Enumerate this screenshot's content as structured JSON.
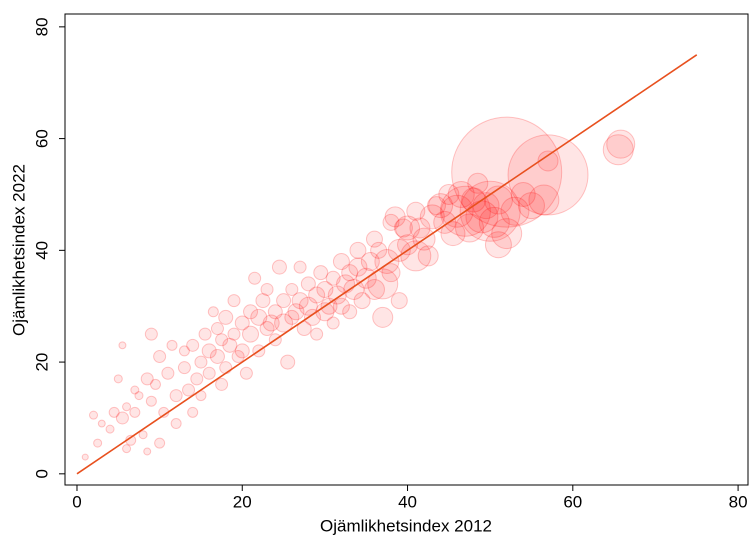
{
  "chart_data": {
    "type": "scatter",
    "xlabel": "Ojämlikhetsindex 2012",
    "ylabel": "Ojämlikhetsindex 2022",
    "xlim": [
      -1.45,
      81.2
    ],
    "ylim": [
      -2,
      82.3
    ],
    "xticks": [
      0,
      20,
      40,
      60,
      80
    ],
    "yticks": [
      0,
      20,
      40,
      60,
      80
    ],
    "series": [
      {
        "color": "#ff0000",
        "x": [
          1,
          2,
          2.5,
          3,
          4,
          4.5,
          5,
          5.5,
          5.5,
          6,
          6,
          6.5,
          7,
          7,
          7.5,
          8,
          8.5,
          8.5,
          9,
          9,
          9.5,
          10,
          10,
          10.5,
          11,
          11.5,
          12,
          12,
          13,
          13,
          13.5,
          14,
          14,
          14.5,
          15,
          15,
          15.5,
          16,
          16,
          16.5,
          17,
          17,
          17.5,
          17.5,
          18,
          18,
          18.5,
          19,
          19,
          19.5,
          20,
          20,
          20.5,
          21,
          21,
          21.5,
          22,
          22,
          22.5,
          23,
          23,
          23.5,
          24,
          24,
          24.5,
          25,
          25,
          25.5,
          26,
          26,
          26.5,
          27,
          27,
          27.5,
          28,
          28,
          28.5,
          29,
          29,
          29.5,
          30,
          30,
          30.5,
          31,
          31,
          31.5,
          32,
          32,
          32.5,
          33,
          33,
          33.5,
          34,
          34,
          34.5,
          35,
          35.5,
          36,
          36,
          36.5,
          37,
          37,
          37.5,
          38,
          38,
          38.5,
          39,
          39,
          39.5,
          40,
          40,
          41,
          41,
          41.5,
          42,
          42.5,
          43,
          43.5,
          44,
          44.5,
          45,
          45.5,
          46,
          46.5,
          47,
          47.5,
          48,
          48.5,
          49,
          49.5,
          50,
          50.5,
          51,
          51,
          52,
          52,
          53,
          54,
          55,
          56.5,
          57,
          57,
          65.5,
          65.8
        ],
        "values": [
          3,
          10.5,
          5.5,
          9,
          8,
          11,
          17,
          23,
          10,
          4.5,
          12,
          6,
          11,
          15,
          14,
          7,
          17,
          4,
          25,
          13,
          16,
          21,
          5.5,
          11,
          18,
          23,
          14,
          9,
          19,
          22,
          15,
          11,
          23,
          17,
          20,
          14,
          25,
          22,
          18,
          29,
          21,
          26,
          24,
          16,
          28,
          19,
          23,
          25,
          31,
          21,
          27,
          22,
          18,
          25,
          29,
          35,
          28,
          22,
          31,
          26,
          33,
          27,
          29,
          24,
          37,
          31,
          27,
          20,
          28,
          33,
          29,
          31,
          37,
          26,
          30,
          34,
          28,
          32,
          25,
          36,
          29,
          33,
          30,
          35,
          27,
          32,
          38,
          30,
          34,
          36,
          29,
          33,
          40,
          37,
          31,
          35,
          38,
          33,
          42,
          40,
          34,
          28,
          38,
          45,
          36,
          46,
          40,
          31,
          44,
          44,
          41,
          39,
          47,
          44,
          42,
          39,
          46,
          48,
          48,
          45,
          50,
          43,
          47,
          50,
          47,
          44,
          49,
          52,
          46,
          48,
          47,
          45,
          41,
          49,
          54,
          43,
          47,
          50,
          48,
          49,
          53.5,
          56,
          58,
          59
        ],
        "sizes": [
          9,
          16,
          16,
          12,
          16,
          25,
          16,
          12,
          36,
          16,
          16,
          25,
          25,
          16,
          16,
          16,
          36,
          12,
          36,
          25,
          25,
          36,
          25,
          25,
          36,
          25,
          36,
          25,
          36,
          25,
          36,
          25,
          36,
          36,
          36,
          25,
          36,
          49,
          36,
          25,
          49,
          36,
          36,
          36,
          49,
          36,
          49,
          36,
          36,
          36,
          49,
          49,
          36,
          64,
          49,
          36,
          64,
          36,
          49,
          49,
          36,
          64,
          49,
          36,
          49,
          49,
          81,
          49,
          49,
          36,
          64,
          64,
          36,
          49,
          81,
          49,
          64,
          64,
          36,
          49,
          81,
          64,
          64,
          49,
          36,
          81,
          64,
          64,
          81,
          64,
          49,
          100,
          64,
          81,
          64,
          100,
          81,
          100,
          64,
          64,
          225,
          100,
          144,
          64,
          81,
          100,
          121,
          64,
          81,
          144,
          100,
          225,
          81,
          100,
          121,
          100,
          144,
          81,
          144,
          121,
          100,
          144,
          256,
          169,
          625,
          196,
          144,
          100,
          256,
          169,
          900,
          225,
          169,
          196,
          3025,
          225,
          196,
          144,
          169,
          225,
          1600,
          100,
          225,
          196
        ]
      }
    ],
    "line": {
      "color": "#e8501e",
      "x": [
        0,
        75
      ],
      "values": [
        0,
        75
      ]
    }
  }
}
